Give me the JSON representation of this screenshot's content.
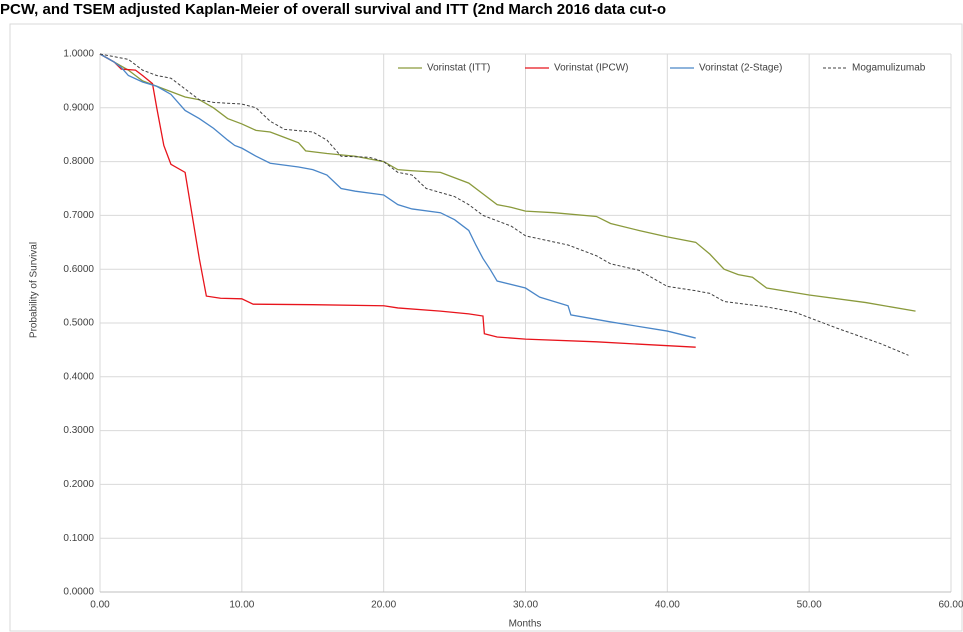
{
  "chart_data": {
    "type": "line",
    "title": "PCW, and TSEM adjusted Kaplan-Meier of overall survival and ITT (2nd March 2016 data cut-o",
    "x_label": "Months",
    "y_label": "Probability of Survival",
    "xlim": [
      0,
      60
    ],
    "ylim": [
      0,
      1
    ],
    "xticks": [
      {
        "value": 0,
        "label": "0.00"
      },
      {
        "value": 10,
        "label": "10.00"
      },
      {
        "value": 20,
        "label": "20.00"
      },
      {
        "value": 30,
        "label": "30.00"
      },
      {
        "value": 40,
        "label": "40.00"
      },
      {
        "value": 50,
        "label": "50.00"
      },
      {
        "value": 60,
        "label": "60.00"
      }
    ],
    "yticks": [
      {
        "value": 0,
        "label": "0.0000"
      },
      {
        "value": 0.1,
        "label": "0.1000"
      },
      {
        "value": 0.2,
        "label": "0.2000"
      },
      {
        "value": 0.3,
        "label": "0.3000"
      },
      {
        "value": 0.4,
        "label": "0.4000"
      },
      {
        "value": 0.5,
        "label": "0.5000"
      },
      {
        "value": 0.6,
        "label": "0.6000"
      },
      {
        "value": 0.7,
        "label": "0.7000"
      },
      {
        "value": 0.8,
        "label": "0.8000"
      },
      {
        "value": 0.9,
        "label": "0.9000"
      },
      {
        "value": 1,
        "label": "1.0000"
      }
    ],
    "grid": true,
    "legend": "top",
    "series": [
      {
        "name": "Vorinstat (ITT)",
        "color": "#8a9a3c",
        "dash": false,
        "x": [
          0,
          1,
          2,
          3,
          4,
          5,
          6,
          7,
          8,
          9,
          10,
          11,
          12,
          13,
          14,
          14.5,
          16,
          18,
          20,
          21,
          22,
          24,
          25,
          26,
          27,
          28,
          29,
          30,
          32,
          35,
          36,
          38,
          40,
          42,
          43,
          44,
          45,
          46,
          47,
          50,
          54,
          57.5
        ],
        "values": [
          1,
          0.985,
          0.97,
          0.95,
          0.94,
          0.93,
          0.92,
          0.915,
          0.9,
          0.88,
          0.87,
          0.858,
          0.855,
          0.845,
          0.835,
          0.82,
          0.815,
          0.81,
          0.8,
          0.785,
          0.783,
          0.78,
          0.77,
          0.76,
          0.74,
          0.72,
          0.715,
          0.708,
          0.705,
          0.698,
          0.685,
          0.672,
          0.66,
          0.65,
          0.628,
          0.6,
          0.59,
          0.585,
          0.565,
          0.552,
          0.538,
          0.522
        ]
      },
      {
        "name": "Vorinstat (IPCW)",
        "color": "#e8141c",
        "dash": false,
        "x": [
          0,
          1,
          1.5,
          2.5,
          3,
          3.7,
          4,
          4.5,
          5,
          6,
          7,
          7.5,
          8.5,
          10,
          10.8,
          15,
          20,
          21,
          24,
          26,
          27,
          27.1,
          28,
          30,
          35,
          42
        ],
        "values": [
          1,
          0.985,
          0.972,
          0.97,
          0.96,
          0.945,
          0.9,
          0.83,
          0.795,
          0.78,
          0.62,
          0.55,
          0.546,
          0.545,
          0.535,
          0.534,
          0.532,
          0.528,
          0.522,
          0.517,
          0.513,
          0.48,
          0.474,
          0.47,
          0.465,
          0.455
        ]
      },
      {
        "name": "Vorinstat (2-Stage)",
        "color": "#4a86c8",
        "dash": false,
        "x": [
          0,
          1,
          1.5,
          2,
          3,
          4,
          5,
          6,
          7,
          8,
          9,
          9.5,
          10,
          11,
          12,
          14,
          15,
          16,
          17,
          18,
          20,
          21,
          22,
          24,
          25,
          26,
          26.5,
          27,
          27.5,
          28,
          30,
          31,
          33,
          33.2,
          36,
          40,
          42
        ],
        "values": [
          1,
          0.985,
          0.975,
          0.96,
          0.948,
          0.94,
          0.925,
          0.895,
          0.88,
          0.862,
          0.84,
          0.83,
          0.825,
          0.81,
          0.797,
          0.79,
          0.785,
          0.775,
          0.75,
          0.745,
          0.738,
          0.72,
          0.712,
          0.705,
          0.692,
          0.672,
          0.645,
          0.62,
          0.6,
          0.578,
          0.565,
          0.548,
          0.532,
          0.515,
          0.502,
          0.485,
          0.472
        ]
      },
      {
        "name": "Mogamulizumab",
        "color": "#404040",
        "dash": true,
        "x": [
          0,
          2,
          3,
          4,
          5,
          6,
          7,
          8,
          10,
          11,
          12,
          13,
          15,
          16,
          17,
          19,
          20,
          21,
          22,
          23,
          25,
          26,
          27,
          28,
          29,
          30,
          33,
          35,
          36,
          38,
          40,
          42,
          43,
          44,
          47,
          49,
          50,
          52,
          55,
          57
        ],
        "values": [
          1,
          0.99,
          0.97,
          0.96,
          0.955,
          0.935,
          0.915,
          0.91,
          0.907,
          0.9,
          0.875,
          0.86,
          0.855,
          0.84,
          0.81,
          0.808,
          0.8,
          0.78,
          0.775,
          0.75,
          0.735,
          0.72,
          0.7,
          0.69,
          0.68,
          0.662,
          0.645,
          0.625,
          0.61,
          0.598,
          0.568,
          0.56,
          0.555,
          0.54,
          0.53,
          0.52,
          0.51,
          0.49,
          0.462,
          0.44
        ]
      }
    ]
  }
}
